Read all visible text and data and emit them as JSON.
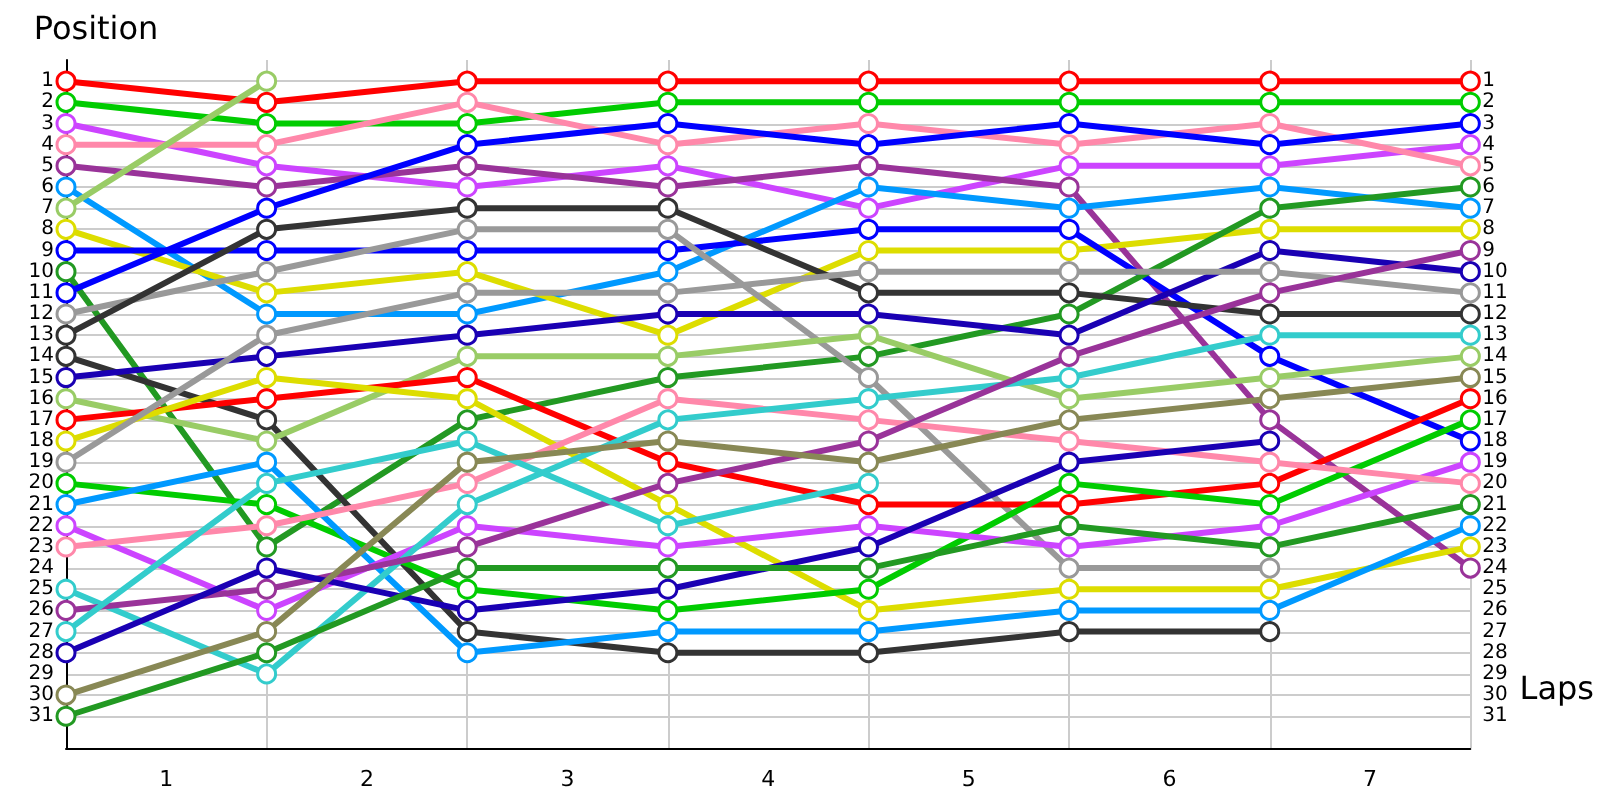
{
  "chart_data": {
    "type": "line",
    "xlabel": "Laps",
    "ylabel": "Position",
    "x": [
      0,
      1,
      2,
      3,
      4,
      5,
      6,
      7
    ],
    "xlim": [
      0,
      7
    ],
    "xticks": [
      {
        "value": 0,
        "label": null
      },
      {
        "value": 0.5,
        "label": "1"
      },
      {
        "value": 1,
        "label": null
      },
      {
        "value": 1.5,
        "label": "2"
      },
      {
        "value": 2,
        "label": null
      },
      {
        "value": 2.5,
        "label": "3"
      },
      {
        "value": 3,
        "label": null
      },
      {
        "value": 3.5,
        "label": "4"
      },
      {
        "value": 4,
        "label": null
      },
      {
        "value": 4.5,
        "label": "5"
      },
      {
        "value": 5,
        "label": null
      },
      {
        "value": 5.5,
        "label": "6"
      },
      {
        "value": 6,
        "label": null
      },
      {
        "value": 6.5,
        "label": "7"
      },
      {
        "value": 7,
        "label": null
      }
    ],
    "ylim": [
      32.5,
      0
    ],
    "yticks": [
      1,
      2,
      3,
      4,
      5,
      6,
      7,
      8,
      9,
      10,
      11,
      12,
      13,
      14,
      15,
      16,
      17,
      18,
      19,
      20,
      21,
      22,
      23,
      24,
      25,
      26,
      27,
      28,
      29,
      30,
      31
    ],
    "y2lim": [
      32.5,
      0
    ],
    "y2ticks": [
      1,
      2,
      3,
      4,
      5,
      6,
      7,
      8,
      9,
      10,
      11,
      12,
      13,
      14,
      15,
      16,
      17,
      18,
      19,
      20,
      21,
      22,
      23,
      24,
      25,
      26,
      27,
      28,
      29,
      30,
      31
    ],
    "grid": true,
    "marker": "circle",
    "line_style": "solid",
    "series": [
      {
        "color": "#ff0000",
        "values": [
          1,
          2,
          1,
          1,
          1,
          1,
          1,
          1
        ]
      },
      {
        "color": "#00cc00",
        "values": [
          2,
          3,
          3,
          2,
          2,
          2,
          2,
          2
        ]
      },
      {
        "color": "#cc44ff",
        "values": [
          3,
          5,
          6,
          5,
          7,
          5,
          5,
          4
        ]
      },
      {
        "color": "#ff88aa",
        "values": [
          4,
          4,
          2,
          4,
          3,
          4,
          3,
          5
        ]
      },
      {
        "color": "#993399",
        "values": [
          5,
          6,
          5,
          6,
          5,
          6,
          17,
          24
        ]
      },
      {
        "color": "#0099ff",
        "values": [
          6,
          12,
          12,
          10,
          6,
          7,
          6,
          7
        ]
      },
      {
        "color": "#99cc66",
        "values": [
          7,
          1,
          null,
          null,
          null,
          null,
          null,
          null
        ]
      },
      {
        "color": "#dddd00",
        "values": [
          8,
          11,
          10,
          13,
          9,
          9,
          8,
          8
        ]
      },
      {
        "color": "#0000ff",
        "values": [
          9,
          9,
          9,
          9,
          8,
          8,
          14,
          18
        ]
      },
      {
        "color": "#229922",
        "values": [
          10,
          23,
          17,
          15,
          14,
          12,
          7,
          6
        ]
      },
      {
        "color": "#0000ff",
        "values": [
          11,
          7,
          4,
          3,
          4,
          3,
          4,
          3
        ]
      },
      {
        "color": "#999999",
        "values": [
          12,
          10,
          8,
          8,
          15,
          24,
          24,
          null
        ]
      },
      {
        "color": "#333333",
        "values": [
          13,
          8,
          7,
          7,
          11,
          11,
          12,
          12
        ]
      },
      {
        "color": "#333333",
        "values": [
          14,
          17,
          27,
          28,
          28,
          27,
          27,
          null
        ]
      },
      {
        "color": "#1a00b3",
        "values": [
          15,
          14,
          13,
          12,
          12,
          13,
          9,
          10
        ]
      },
      {
        "color": "#99cc66",
        "values": [
          16,
          18,
          14,
          14,
          13,
          16,
          15,
          14
        ]
      },
      {
        "color": "#ff0000",
        "values": [
          17,
          16,
          15,
          19,
          21,
          21,
          20,
          16
        ]
      },
      {
        "color": "#dddd00",
        "values": [
          18,
          15,
          16,
          21,
          26,
          25,
          25,
          23
        ]
      },
      {
        "color": "#999999",
        "values": [
          19,
          13,
          11,
          11,
          10,
          10,
          10,
          11
        ]
      },
      {
        "color": "#00cc00",
        "values": [
          20,
          21,
          25,
          26,
          25,
          20,
          21,
          17
        ]
      },
      {
        "color": "#0099ff",
        "values": [
          21,
          19,
          28,
          27,
          27,
          26,
          26,
          22
        ]
      },
      {
        "color": "#cc44ff",
        "values": [
          22,
          26,
          22,
          23,
          22,
          23,
          22,
          19
        ]
      },
      {
        "color": "#ff88aa",
        "values": [
          23,
          22,
          20,
          16,
          17,
          18,
          19,
          20
        ]
      },
      {
        "color": "#33cccc",
        "values": [
          25,
          29,
          21,
          17,
          16,
          15,
          13,
          13
        ]
      },
      {
        "color": "#993399",
        "values": [
          26,
          25,
          23,
          20,
          18,
          14,
          11,
          9
        ]
      },
      {
        "color": "#33cccc",
        "values": [
          27,
          20,
          18,
          22,
          20,
          null,
          null,
          null
        ]
      },
      {
        "color": "#1a00b3",
        "values": [
          28,
          24,
          26,
          25,
          23,
          19,
          18,
          null
        ]
      },
      {
        "color": "#888855",
        "values": [
          30,
          27,
          19,
          18,
          19,
          17,
          16,
          15
        ]
      },
      {
        "color": "#229922",
        "values": [
          31,
          28,
          24,
          24,
          24,
          22,
          23,
          21
        ]
      }
    ]
  }
}
